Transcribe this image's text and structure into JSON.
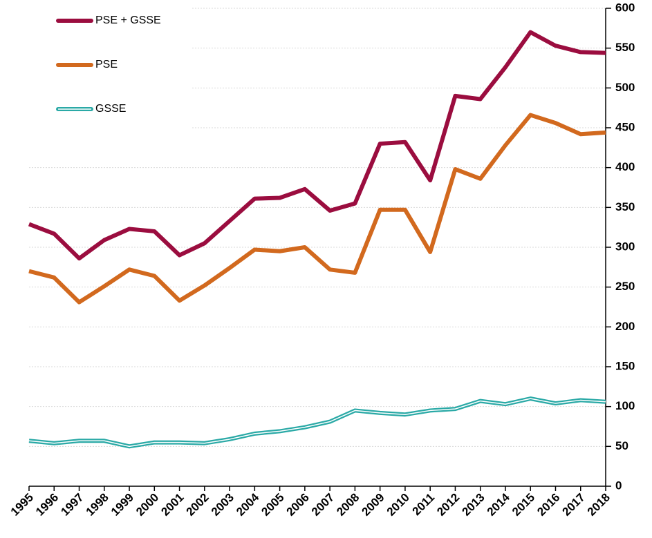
{
  "chart_data": {
    "type": "line",
    "categories": [
      "1995",
      "1996",
      "1997",
      "1998",
      "1999",
      "2000",
      "2001",
      "2002",
      "2003",
      "2004",
      "2005",
      "2006",
      "2007",
      "2008",
      "2009",
      "2010",
      "2011",
      "2012",
      "2013",
      "2014",
      "2015",
      "2016",
      "2017",
      "2018"
    ],
    "series": [
      {
        "name": "PSE + GSSE",
        "color": "#9b0d3f",
        "values": [
          329,
          317,
          286,
          309,
          323,
          320,
          290,
          305,
          333,
          361,
          362,
          373,
          346,
          355,
          430,
          432,
          384,
          490,
          486,
          526,
          570,
          553,
          545,
          544
        ]
      },
      {
        "name": "PSE",
        "color": "#d2691e",
        "values": [
          270,
          262,
          231,
          251,
          272,
          264,
          233,
          252,
          274,
          297,
          295,
          300,
          272,
          268,
          347,
          347,
          294,
          398,
          386,
          428,
          466,
          456,
          442,
          444
        ]
      },
      {
        "name": "GSSE",
        "color": "#2aa9a6",
        "values": [
          57,
          54,
          57,
          57,
          50,
          55,
          55,
          54,
          59,
          66,
          69,
          74,
          81,
          95,
          92,
          90,
          95,
          97,
          107,
          103,
          110,
          104,
          108,
          106
        ]
      }
    ],
    "ylim": [
      0,
      600
    ],
    "yticks": [
      0,
      50,
      100,
      150,
      200,
      250,
      300,
      350,
      400,
      450,
      500,
      550,
      600
    ],
    "grid": true,
    "legend": "top-left",
    "y_axis_side": "right"
  }
}
